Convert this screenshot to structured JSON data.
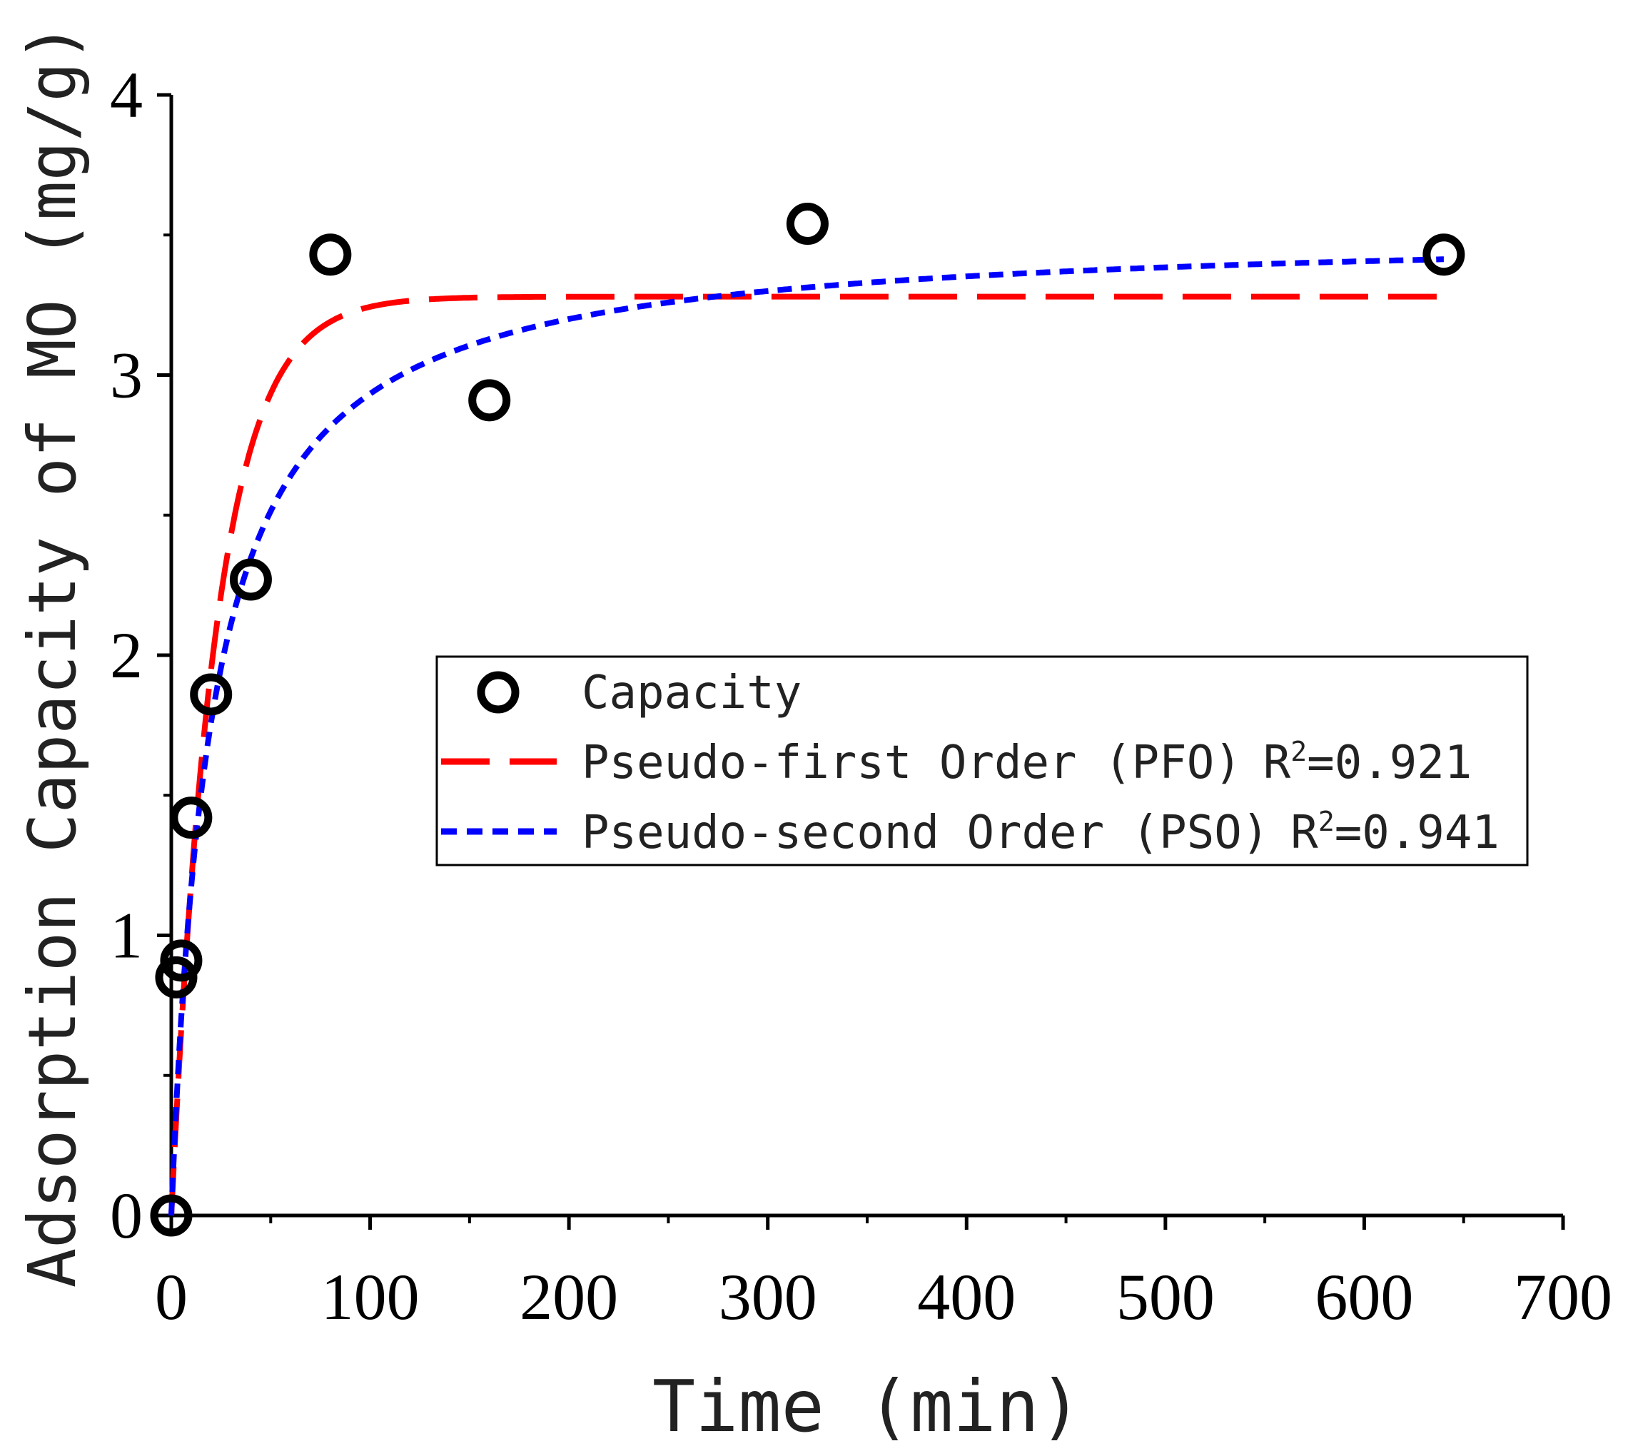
{
  "chart_data": {
    "type": "scatter",
    "xlabel": "Time (min)",
    "ylabel": "Adsorption Capacity of MO (mg/g)",
    "xlim": [
      0,
      700
    ],
    "ylim": [
      0,
      4
    ],
    "xticks": [
      "0",
      "100",
      "200",
      "300",
      "400",
      "500",
      "600",
      "700"
    ],
    "yticks": [
      "0",
      "1",
      "2",
      "3",
      "4"
    ],
    "grid": false,
    "legend_position": "center-right",
    "series": [
      {
        "name": "Capacity",
        "kind": "points",
        "color": "#000000",
        "x": [
          0,
          2.5,
          5,
          10,
          20,
          40,
          80,
          160,
          320,
          640
        ],
        "y": [
          0,
          0.85,
          0.91,
          1.42,
          1.86,
          2.27,
          3.43,
          2.91,
          3.54,
          3.43
        ]
      },
      {
        "name": "Pseudo-first Order (PFO)",
        "r2_label": "R",
        "r2_sup": "2",
        "r2_value": "=0.921",
        "kind": "line",
        "dash": "long",
        "color": "#ff0000",
        "model": "pfo",
        "qe": 3.28,
        "k": 0.045
      },
      {
        "name": "Pseudo-second Order (PSO)",
        "r2_label": "R",
        "r2_sup": "2",
        "r2_value": "=0.941",
        "kind": "line",
        "dash": "short",
        "color": "#0000ff",
        "model": "pso",
        "qe": 3.52,
        "k": 0.0142
      }
    ]
  }
}
